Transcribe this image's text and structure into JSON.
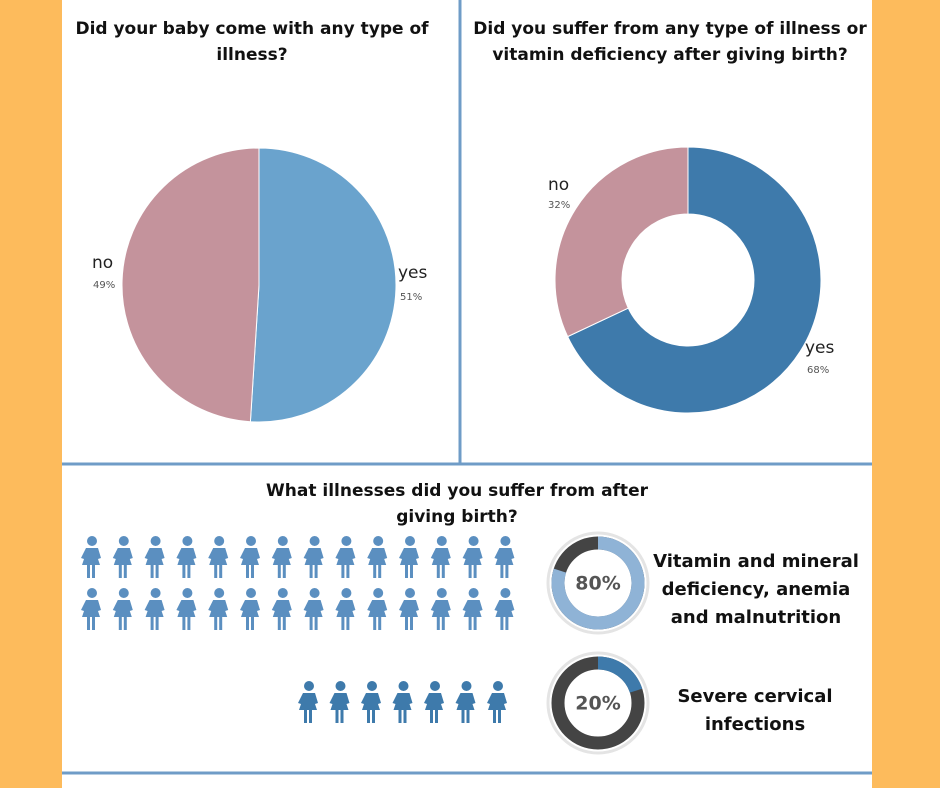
{
  "chart_data": [
    {
      "type": "pie",
      "title": "Did your baby come with any type of illness?",
      "categories": [
        "yes",
        "no"
      ],
      "values": [
        51,
        49
      ],
      "value_labels": [
        "51%",
        "49%"
      ],
      "colors": [
        "#6aa3cd",
        "#c4939c"
      ]
    },
    {
      "type": "donut",
      "title": "Did you suffer from any type of illness or vitamin deficiency after giving birth?",
      "categories": [
        "yes",
        "no"
      ],
      "values": [
        68,
        32
      ],
      "value_labels": [
        "68%",
        "32%"
      ],
      "colors": [
        "#3e7aab",
        "#c4939c"
      ]
    },
    {
      "type": "progress",
      "title": "What illnesses did you suffer from after giving birth?",
      "categories": [
        "Vitamin and mineral deficiency, anemia and malnutrition",
        "Severe cervical infections"
      ],
      "values": [
        80,
        20
      ],
      "value_labels": [
        "80%",
        "20%"
      ],
      "colors": [
        "#8fb3d6",
        "#3e7aab"
      ]
    }
  ]
}
